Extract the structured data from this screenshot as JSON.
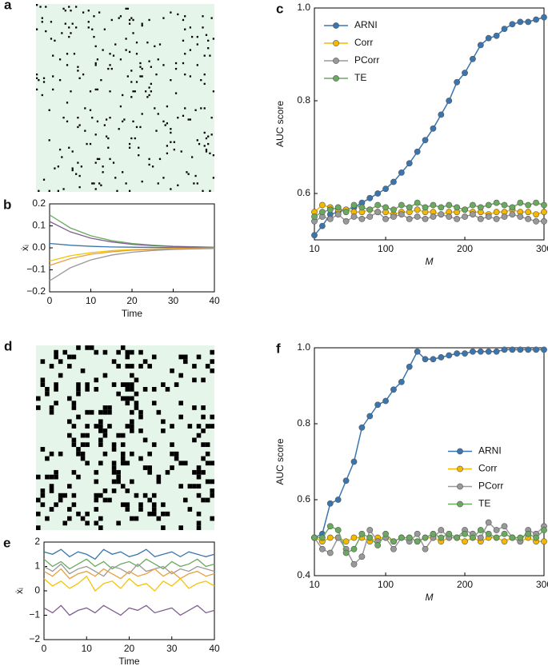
{
  "chart_data": [
    {
      "type": "matrix",
      "panel": "a"
    },
    {
      "type": "line",
      "panel": "b",
      "x_label": "Time",
      "y_label": "ẋᵢ",
      "x": [
        0,
        5,
        10,
        15,
        20,
        25,
        30,
        35,
        40
      ],
      "series": [
        {
          "color": "#6aaa5f",
          "values": [
            0.15,
            0.091,
            0.055,
            0.033,
            0.02,
            0.012,
            0.007,
            0.005,
            0.003
          ]
        },
        {
          "color": "#7f5f8f",
          "values": [
            0.12,
            0.073,
            0.044,
            0.027,
            0.016,
            0.01,
            0.006,
            0.004,
            0.002
          ]
        },
        {
          "color": "#3b75af",
          "values": [
            0.02,
            0.012,
            0.007,
            0.004,
            0.003,
            0.002,
            0.001,
            0.001,
            0
          ]
        },
        {
          "color": "#f5c400",
          "values": [
            -0.06,
            -0.036,
            -0.022,
            -0.013,
            -0.008,
            -0.005,
            -0.003,
            -0.002,
            -0.001
          ]
        },
        {
          "color": "#e8a040",
          "values": [
            -0.08,
            -0.049,
            -0.029,
            -0.018,
            -0.011,
            -0.007,
            -0.004,
            -0.002,
            -0.001
          ]
        },
        {
          "color": "#999999",
          "values": [
            -0.15,
            -0.091,
            -0.055,
            -0.033,
            -0.02,
            -0.012,
            -0.007,
            -0.005,
            -0.003
          ]
        }
      ],
      "xlim": [
        0,
        40
      ],
      "xticks": [
        0,
        10,
        20,
        30,
        40
      ],
      "ylim": [
        -0.2,
        0.2
      ],
      "yticks": [
        {
          "value": -0.2,
          "label": "−0.2"
        },
        {
          "value": -0.1,
          "label": "−0.1"
        },
        {
          "value": 0,
          "label": "0.0"
        },
        0.1,
        0.2
      ]
    },
    {
      "type": "line",
      "panel": "c",
      "x_label": "M",
      "y_label": "AUC score",
      "markers": true,
      "legend": "upper left",
      "x": [
        10,
        20,
        30,
        40,
        50,
        60,
        70,
        80,
        90,
        100,
        110,
        120,
        130,
        140,
        150,
        160,
        170,
        180,
        190,
        200,
        210,
        220,
        230,
        240,
        250,
        260,
        270,
        280,
        290,
        300
      ],
      "series": [
        {
          "name": "ARNI",
          "color": "#3b75af",
          "values": [
            0.51,
            0.53,
            0.555,
            0.56,
            0.565,
            0.57,
            0.58,
            0.59,
            0.6,
            0.61,
            0.625,
            0.645,
            0.665,
            0.69,
            0.715,
            0.74,
            0.77,
            0.8,
            0.84,
            0.86,
            0.89,
            0.92,
            0.935,
            0.94,
            0.955,
            0.965,
            0.97,
            0.97,
            0.975,
            0.98
          ]
        },
        {
          "name": "Corr",
          "color": "#f5b800",
          "values": [
            0.56,
            0.575,
            0.57,
            0.565,
            0.565,
            0.56,
            0.56,
            0.565,
            0.56,
            0.56,
            0.555,
            0.56,
            0.56,
            0.565,
            0.56,
            0.56,
            0.555,
            0.56,
            0.56,
            0.565,
            0.56,
            0.56,
            0.555,
            0.56,
            0.56,
            0.565,
            0.56,
            0.56,
            0.555,
            0.56
          ]
        },
        {
          "name": "PCorr",
          "color": "#999999",
          "values": [
            0.54,
            0.55,
            0.545,
            0.555,
            0.54,
            0.55,
            0.545,
            0.55,
            0.56,
            0.545,
            0.55,
            0.555,
            0.545,
            0.55,
            0.545,
            0.55,
            0.555,
            0.55,
            0.545,
            0.55,
            0.555,
            0.545,
            0.55,
            0.545,
            0.55,
            0.555,
            0.55,
            0.545,
            0.54,
            0.54
          ]
        },
        {
          "name": "TE",
          "color": "#6aaa5f",
          "values": [
            0.55,
            0.56,
            0.565,
            0.57,
            0.56,
            0.575,
            0.57,
            0.565,
            0.575,
            0.57,
            0.565,
            0.575,
            0.57,
            0.58,
            0.57,
            0.575,
            0.57,
            0.575,
            0.57,
            0.565,
            0.575,
            0.57,
            0.575,
            0.58,
            0.575,
            0.57,
            0.58,
            0.575,
            0.58,
            0.575
          ]
        }
      ],
      "xlim": [
        10,
        300
      ],
      "xticks": [
        10,
        100,
        200,
        300
      ],
      "ylim": [
        0.5,
        1.0
      ],
      "yticks": [
        0.6,
        0.8,
        {
          "value": 1.0,
          "label": "1.0"
        }
      ]
    },
    {
      "type": "matrix",
      "panel": "d"
    },
    {
      "type": "line",
      "panel": "e",
      "x_label": "Time",
      "y_label": "ẋᵢ",
      "x": [
        0,
        2,
        4,
        6,
        8,
        10,
        12,
        14,
        16,
        18,
        20,
        22,
        24,
        26,
        28,
        30,
        32,
        34,
        36,
        38,
        40
      ],
      "series": [
        {
          "color": "#3b75af",
          "values": [
            1.6,
            1.5,
            1.7,
            1.4,
            1.6,
            1.5,
            1.3,
            1.7,
            1.5,
            1.6,
            1.4,
            1.5,
            1.7,
            1.4,
            1.5,
            1.6,
            1.4,
            1.6,
            1.5,
            1.4,
            1.5
          ]
        },
        {
          "color": "#6aaa5f",
          "values": [
            1.3,
            1.0,
            1.2,
            0.9,
            1.1,
            1.3,
            1.0,
            1.2,
            0.9,
            1.1,
            1.2,
            1.0,
            1.3,
            1.1,
            0.9,
            1.2,
            1.0,
            1.1,
            1.3,
            1.0,
            1.1
          ]
        },
        {
          "color": "#999999",
          "values": [
            1.0,
            0.8,
            1.1,
            0.7,
            0.9,
            1.0,
            0.8,
            0.6,
            1.0,
            0.9,
            0.7,
            1.1,
            0.8,
            0.9,
            1.0,
            0.7,
            0.9,
            0.8,
            1.0,
            0.9,
            0.8
          ]
        },
        {
          "color": "#e8a040",
          "values": [
            0.8,
            0.6,
            0.9,
            0.5,
            0.7,
            0.8,
            0.6,
            0.9,
            0.7,
            0.5,
            0.8,
            0.6,
            0.7,
            0.9,
            0.6,
            0.8,
            0.5,
            0.7,
            0.8,
            0.6,
            0.7
          ]
        },
        {
          "color": "#f5c400",
          "values": [
            0.5,
            0.2,
            0.4,
            0.1,
            0.3,
            0.6,
            0.0,
            0.3,
            0.4,
            0.1,
            0.5,
            0.2,
            0.3,
            0.0,
            0.4,
            0.2,
            0.5,
            0.1,
            0.3,
            0.4,
            0.2
          ]
        },
        {
          "color": "#7f5f8f",
          "values": [
            -0.7,
            -0.9,
            -0.6,
            -1.0,
            -0.8,
            -0.7,
            -0.9,
            -0.6,
            -0.8,
            -1.0,
            -0.7,
            -0.8,
            -0.6,
            -0.9,
            -0.8,
            -0.7,
            -1.0,
            -0.8,
            -0.6,
            -0.9,
            -0.8
          ]
        }
      ],
      "xlim": [
        0,
        40
      ],
      "xticks": [
        0,
        10,
        20,
        30,
        40
      ],
      "ylim": [
        -2,
        2
      ],
      "yticks": [
        {
          "value": -2,
          "label": "−2"
        },
        {
          "value": -1,
          "label": "−1"
        },
        0,
        1,
        2
      ]
    },
    {
      "type": "line",
      "panel": "f",
      "x_label": "M",
      "y_label": "AUC score",
      "markers": true,
      "legend": "center right",
      "x": [
        10,
        20,
        30,
        40,
        50,
        60,
        70,
        80,
        90,
        100,
        110,
        120,
        130,
        140,
        150,
        160,
        170,
        180,
        190,
        200,
        210,
        220,
        230,
        240,
        250,
        260,
        270,
        280,
        290,
        300
      ],
      "series": [
        {
          "name": "ARNI",
          "color": "#3b75af",
          "values": [
            0.5,
            0.51,
            0.59,
            0.6,
            0.65,
            0.7,
            0.79,
            0.82,
            0.85,
            0.86,
            0.89,
            0.91,
            0.95,
            0.99,
            0.97,
            0.97,
            0.975,
            0.98,
            0.985,
            0.985,
            0.99,
            0.99,
            0.99,
            0.99,
            0.995,
            0.995,
            0.995,
            0.995,
            0.995,
            0.995
          ]
        },
        {
          "name": "Corr",
          "color": "#f5b800",
          "values": [
            0.5,
            0.49,
            0.5,
            0.5,
            0.49,
            0.5,
            0.5,
            0.49,
            0.5,
            0.5,
            0.49,
            0.5,
            0.5,
            0.49,
            0.5,
            0.5,
            0.49,
            0.5,
            0.5,
            0.49,
            0.5,
            0.49,
            0.5,
            0.5,
            0.49,
            0.5,
            0.49,
            0.5,
            0.49,
            0.49
          ]
        },
        {
          "name": "PCorr",
          "color": "#999999",
          "values": [
            0.5,
            0.47,
            0.46,
            0.5,
            0.47,
            0.43,
            0.45,
            0.52,
            0.49,
            0.5,
            0.47,
            0.5,
            0.49,
            0.51,
            0.47,
            0.5,
            0.52,
            0.5,
            0.5,
            0.52,
            0.51,
            0.5,
            0.54,
            0.52,
            0.53,
            0.5,
            0.49,
            0.52,
            0.51,
            0.53
          ]
        },
        {
          "name": "TE",
          "color": "#6aaa5f",
          "values": [
            0.5,
            0.5,
            0.53,
            0.52,
            0.46,
            0.47,
            0.51,
            0.5,
            0.48,
            0.51,
            0.49,
            0.5,
            0.5,
            0.49,
            0.5,
            0.51,
            0.5,
            0.51,
            0.5,
            0.51,
            0.5,
            0.52,
            0.51,
            0.5,
            0.51,
            0.5,
            0.5,
            0.51,
            0.5,
            0.52
          ]
        }
      ],
      "xlim": [
        10,
        300
      ],
      "xticks": [
        10,
        100,
        200,
        300
      ],
      "ylim": [
        0.4,
        1.0
      ],
      "yticks": [
        0.4,
        0.6,
        0.8,
        {
          "value": 1.0,
          "label": "1.0"
        }
      ]
    }
  ]
}
